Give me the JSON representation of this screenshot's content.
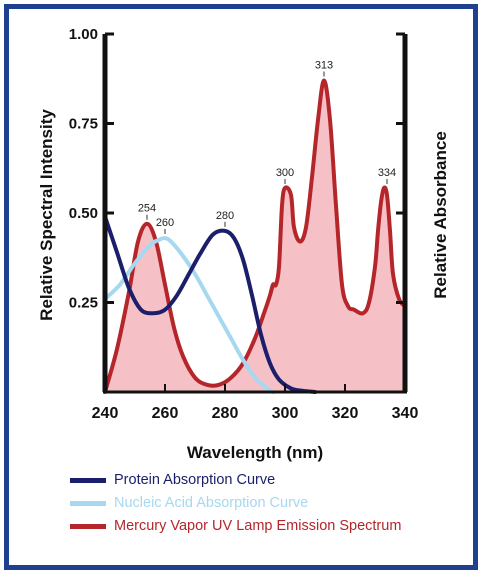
{
  "chart_data": {
    "type": "line",
    "xlabel": "Wavelength (nm)",
    "ylabel_left": "Relative Spectral Intensity",
    "ylabel_right": "Relative Absorbance",
    "xlim": [
      240,
      340
    ],
    "ylim": [
      0,
      1.0
    ],
    "x_ticks": [
      240,
      260,
      280,
      300,
      320,
      340
    ],
    "y_ticks": [
      0.25,
      0.5,
      0.75,
      1.0
    ],
    "y_tick_labels": [
      "0.25",
      "0.50",
      "0.75",
      "1.00"
    ],
    "grid": false,
    "legend_placement": "bottom",
    "series": [
      {
        "name": "Mercury Vapor UV Lamp Emission Spectrum",
        "color": "#b5262b",
        "fill": "#f6c1c6",
        "x": [
          240,
          244,
          248,
          251,
          254,
          257,
          260,
          263,
          266,
          270,
          274,
          278,
          282,
          286,
          290,
          293,
          295,
          296,
          297,
          298,
          299,
          300,
          302,
          303,
          305,
          307,
          309,
          311,
          313,
          315,
          317,
          319,
          321,
          323,
          326,
          328,
          330,
          331,
          332,
          333,
          334,
          335,
          336,
          338,
          340
        ],
        "y": [
          0.0,
          0.12,
          0.28,
          0.42,
          0.47,
          0.42,
          0.3,
          0.18,
          0.1,
          0.04,
          0.02,
          0.02,
          0.04,
          0.08,
          0.15,
          0.22,
          0.27,
          0.3,
          0.3,
          0.35,
          0.52,
          0.57,
          0.55,
          0.46,
          0.42,
          0.46,
          0.6,
          0.76,
          0.87,
          0.76,
          0.52,
          0.3,
          0.24,
          0.23,
          0.22,
          0.25,
          0.35,
          0.45,
          0.53,
          0.57,
          0.55,
          0.45,
          0.33,
          0.26,
          0.24
        ]
      },
      {
        "name": "Protein Absorption Curve",
        "color": "#1b1f6b",
        "x": [
          240,
          244,
          248,
          252,
          256,
          260,
          264,
          268,
          272,
          276,
          280,
          283,
          286,
          289,
          292,
          295,
          298,
          302,
          306,
          310
        ],
        "y": [
          0.49,
          0.39,
          0.29,
          0.23,
          0.22,
          0.23,
          0.27,
          0.33,
          0.39,
          0.44,
          0.45,
          0.43,
          0.37,
          0.27,
          0.16,
          0.08,
          0.035,
          0.01,
          0.003,
          0.0
        ]
      },
      {
        "name": "Nucleic Acid Absorption Curve",
        "color": "#a6d8f0",
        "x": [
          240,
          245,
          250,
          255,
          258,
          260,
          262,
          266,
          270,
          274,
          278,
          282,
          286,
          290,
          294,
          296
        ],
        "y": [
          0.26,
          0.3,
          0.36,
          0.41,
          0.425,
          0.43,
          0.42,
          0.38,
          0.33,
          0.27,
          0.21,
          0.15,
          0.09,
          0.04,
          0.01,
          0.0
        ]
      }
    ],
    "annotations": [
      {
        "text": "254",
        "x": 254,
        "y": 0.47
      },
      {
        "text": "260",
        "x": 260,
        "y": 0.43
      },
      {
        "text": "280",
        "x": 280,
        "y": 0.45
      },
      {
        "text": "300",
        "x": 300,
        "y": 0.57
      },
      {
        "text": "313",
        "x": 313,
        "y": 0.87
      },
      {
        "text": "334",
        "x": 334,
        "y": 0.57
      }
    ]
  },
  "legend": {
    "items": [
      {
        "label": "Protein Absorption Curve",
        "color": "#1b1f6b"
      },
      {
        "label": "Nucleic Acid Absorption Curve",
        "color": "#a6d8f0"
      },
      {
        "label": "Mercury Vapor UV Lamp Emission Spectrum",
        "color": "#b5262b"
      }
    ]
  }
}
